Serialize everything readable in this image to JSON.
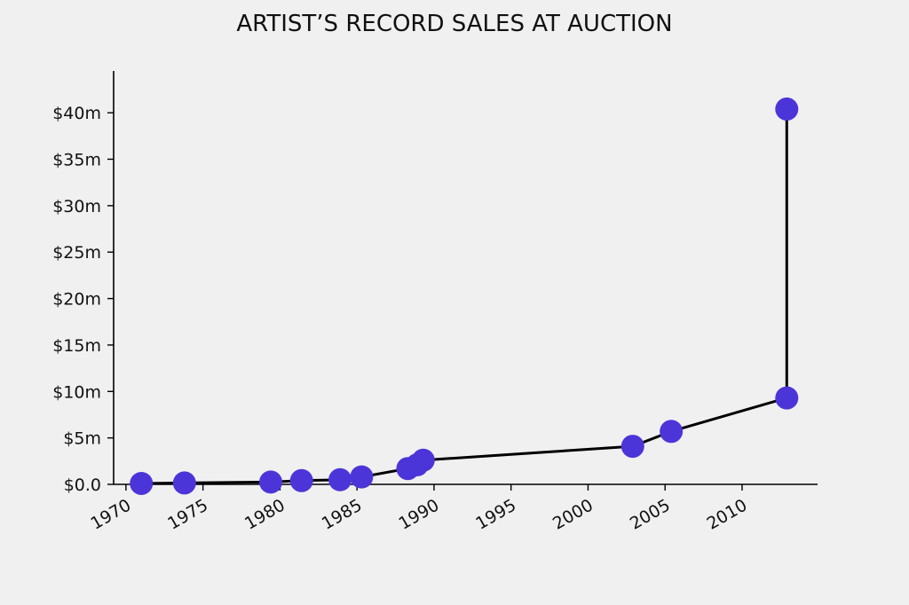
{
  "chart_data": {
    "type": "line",
    "title": "ARTIST’S RECORD SALES AT AUCTION",
    "xlabel": "",
    "ylabel": "",
    "x_ticks": [
      1970,
      1975,
      1980,
      1985,
      1990,
      1995,
      2000,
      2005,
      2010
    ],
    "y_ticks": [
      "$0.0",
      "$5m",
      "$10m",
      "$15m",
      "$20m",
      "$25m",
      "$30m",
      "$35m",
      "$40m"
    ],
    "y_tick_values": [
      0,
      5,
      10,
      15,
      20,
      25,
      30,
      35,
      40
    ],
    "xlim": [
      1969.2,
      2014.9
    ],
    "ylim": [
      0,
      44.5
    ],
    "y_unit": "$ millions",
    "grid": false,
    "legend": "none",
    "series": [
      {
        "x": [
          1971.0,
          1973.8,
          1979.4,
          1981.4,
          1983.9,
          1985.3,
          1988.3,
          1988.9,
          1989.3,
          2002.9,
          2005.4,
          2012.9,
          2012.9
        ],
        "values": [
          0.1,
          0.15,
          0.25,
          0.4,
          0.5,
          0.8,
          1.7,
          2.1,
          2.6,
          4.1,
          5.7,
          9.3,
          40.4
        ]
      }
    ],
    "colors": {
      "marker": "#4b35d9",
      "line": "#000000",
      "background": "#f0f0f0"
    }
  }
}
